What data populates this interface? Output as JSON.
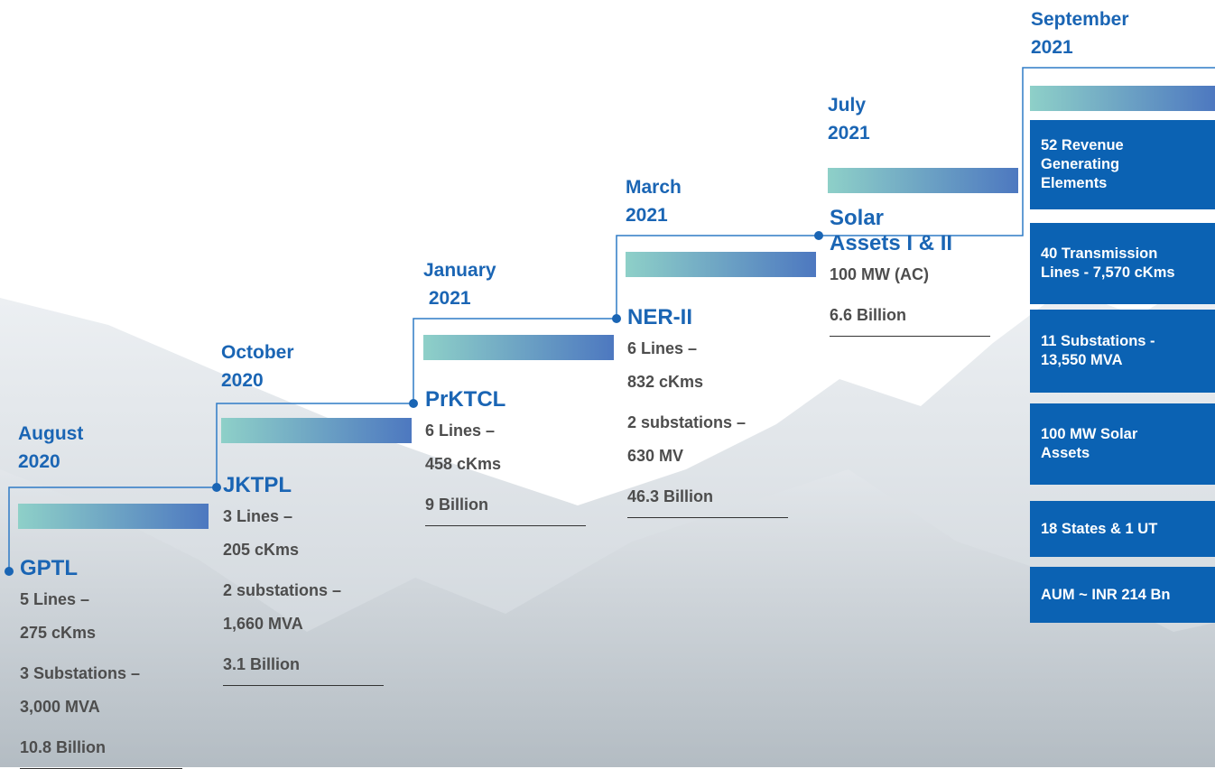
{
  "steps": [
    {
      "date": [
        "August",
        "2020"
      ],
      "name": [
        "GPTL"
      ],
      "details": [
        [
          "5 Lines –",
          "275 cKms"
        ],
        [
          "3 Substations –",
          "3,000 MVA"
        ],
        [
          "10.8 Billion"
        ]
      ]
    },
    {
      "date": [
        "October",
        "2020"
      ],
      "name": [
        "JKTPL"
      ],
      "details": [
        [
          "3 Lines –",
          "205 cKms"
        ],
        [
          "2 substations –",
          "1,660 MVA"
        ],
        [
          "3.1 Billion"
        ]
      ]
    },
    {
      "date": [
        "January",
        " 2021"
      ],
      "name": [
        "PrKTCL"
      ],
      "details": [
        [
          "6 Lines –",
          "458 cKms"
        ],
        [
          "9 Billion"
        ]
      ]
    },
    {
      "date": [
        "March",
        "2021"
      ],
      "name": [
        "NER-II"
      ],
      "details": [
        [
          "6 Lines –",
          "832 cKms"
        ],
        [
          "2 substations –",
          "630 MV"
        ],
        [
          "46.3 Billion"
        ]
      ]
    },
    {
      "date": [
        "July",
        "2021"
      ],
      "name": [
        "Solar",
        "Assets I & II"
      ],
      "details": [
        [
          "100 MW (AC)"
        ],
        [
          "6.6 Billion"
        ]
      ]
    }
  ],
  "summary": {
    "date": [
      "September",
      "2021"
    ],
    "items": [
      [
        "52 Revenue",
        "Generating",
        "Elements"
      ],
      [
        "40 Transmission",
        "Lines - 7,570 cKms"
      ],
      [
        "11 Substations -",
        "13,550 MVA"
      ],
      [
        "100 MW Solar",
        "Assets"
      ],
      [
        "18 States & 1 UT"
      ],
      [
        "AUM ~ INR 214 Bn"
      ]
    ]
  }
}
